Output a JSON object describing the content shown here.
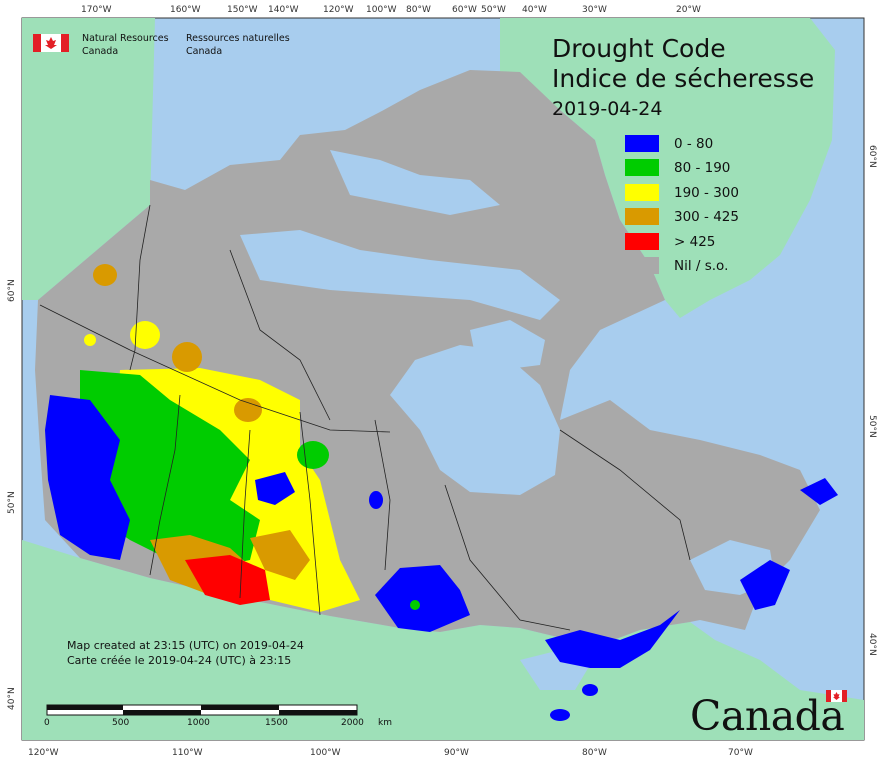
{
  "agency": {
    "name_en_line1": "Natural Resources",
    "name_en_line2": "Canada",
    "name_fr_line1": "Ressources naturelles",
    "name_fr_line2": "Canada"
  },
  "title": {
    "line1": "Drought Code",
    "line2": "Indice de sécheresse",
    "date": "2019-04-24"
  },
  "legend": [
    {
      "label": "0 - 80",
      "color": "#0000ff"
    },
    {
      "label": "80 - 190",
      "color": "#00cc00"
    },
    {
      "label": "190 - 300",
      "color": "#ffff00"
    },
    {
      "label": "300 - 425",
      "color": "#d99a00"
    },
    {
      "label": "> 425",
      "color": "#ff0000"
    },
    {
      "label": "Nil / s.o.",
      "color": "#a9a9a9"
    }
  ],
  "created": {
    "en": "Map created at 23:15 (UTC) on 2019-04-24",
    "fr": "Carte créée le 2019-04-24 (UTC) à 23:15"
  },
  "scale": {
    "ticks": [
      "0",
      "500",
      "1000",
      "1500",
      "2000"
    ],
    "unit": "km"
  },
  "graticule": {
    "top": [
      "170°W",
      "160°W",
      "150°W",
      "140°W",
      "120°W",
      "100°W",
      "80°W",
      "60°W",
      "50°W",
      "40°W",
      "30°W",
      "20°W"
    ],
    "bottom": [
      "120°W",
      "110°W",
      "100°W",
      "90°W",
      "80°W",
      "70°W"
    ],
    "left": [
      "60°N",
      "50°N",
      "40°N"
    ],
    "right": [
      "60°N",
      "50°N",
      "40°N"
    ]
  },
  "wordmark": "Canada",
  "colors": {
    "ocean": "#a8cdee",
    "foreign_land": "#9ee0b8",
    "nil": "#a9a9a9",
    "border": "#222222"
  }
}
